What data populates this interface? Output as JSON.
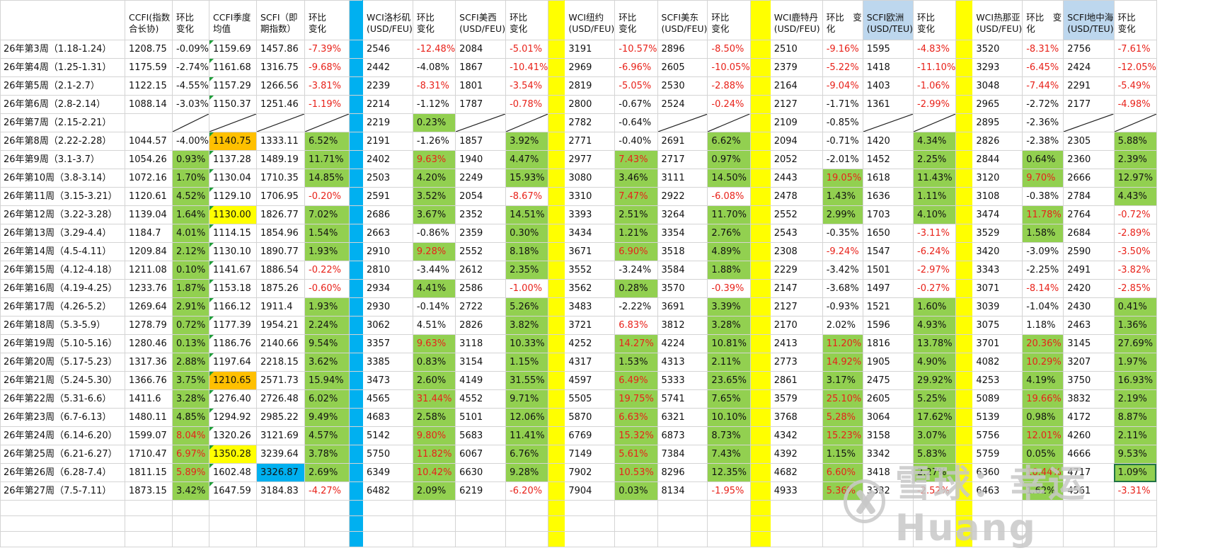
{
  "headers": [
    "",
    "CCFI(指数合长协)",
    "环比\n变化",
    "CCFI季度均值",
    "SCFI（即期指数）",
    "环比　　变化",
    "",
    "WCI洛杉矶(USD/FEU)",
    "环比\n变化",
    "SCFI美西(USD/FEU)",
    "环比\n变化",
    "",
    "WCI纽约(USD/FEU)",
    "环比　　变化",
    "SCFI美东(USD/FEU)",
    "环比\n变化",
    "",
    "WCI鹿特丹(USD/FEU)",
    "环比　变化",
    "SCFI欧洲(USD/TEU)",
    "环比\n变化",
    "",
    "WCI热那亚(USD/FEU)",
    "环比　变化",
    "SCFI地中海(USD/TEU)",
    "环比\n变化"
  ],
  "rows": [
    [
      "26年第3周（1.18-1.24）",
      "1208.75",
      "-0.09%",
      "1159.69",
      "1457.86",
      "-7.39%",
      "",
      "2546",
      "-12.48%",
      "2084",
      "-5.01%",
      "",
      "3191",
      "-10.57%",
      "2896",
      "-8.50%",
      "",
      "2510",
      "-9.16%",
      "1595",
      "-4.83%",
      "",
      "3520",
      "-8.31%",
      "2756",
      "-7.61%"
    ],
    [
      "26年第4周（1.25-1.31）",
      "1175.59",
      "-2.74%",
      "1161.68",
      "1316.75",
      "-9.68%",
      "",
      "2442",
      "-4.08%",
      "1867",
      "-10.41%",
      "",
      "2969",
      "-6.96%",
      "2605",
      "-10.05%",
      "",
      "2379",
      "-5.22%",
      "1418",
      "-11.10%",
      "",
      "3293",
      "-6.45%",
      "2424",
      "-12.05%"
    ],
    [
      "26年第5周（2.1-2.7）",
      "1122.15",
      "-4.55%",
      "1157.29",
      "1266.56",
      "-3.81%",
      "",
      "2239",
      "-8.31%",
      "1801",
      "-3.54%",
      "",
      "2819",
      "-5.05%",
      "2530",
      "-2.88%",
      "",
      "2164",
      "-9.04%",
      "1403",
      "-1.06%",
      "",
      "3048",
      "-7.44%",
      "2291",
      "-5.49%"
    ],
    [
      "26年第6周（2.8-2.14）",
      "1088.14",
      "-3.03%",
      "1150.37",
      "1251.46",
      "-1.19%",
      "",
      "2214",
      "-1.12%",
      "1787",
      "-0.78%",
      "",
      "2800",
      "-0.67%",
      "2524",
      "-0.24%",
      "",
      "2127",
      "-1.71%",
      "1361",
      "-2.99%",
      "",
      "2965",
      "-2.72%",
      "2177",
      "-4.98%"
    ],
    [
      "26年第7周（2.15-2.21）",
      "",
      "/",
      "/",
      "/",
      "/",
      "",
      "2219",
      "0.23%",
      "/",
      "/",
      "",
      "2782",
      "-0.64%",
      "/",
      "/",
      "",
      "2109",
      "-0.85%",
      "/",
      "/",
      "",
      "2895",
      "-2.36%",
      "/",
      "/"
    ],
    [
      "26年第8周（2.22-2.28）",
      "1044.57",
      "-4.00%",
      "1140.75",
      "1333.11",
      "6.52%",
      "",
      "2191",
      "-1.26%",
      "1857",
      "3.92%",
      "",
      "2771",
      "-0.40%",
      "2691",
      "6.62%",
      "",
      "2094",
      "-0.71%",
      "1420",
      "4.34%",
      "",
      "2826",
      "-2.38%",
      "2305",
      "5.88%"
    ],
    [
      "26年第9周（3.1-3.7）",
      "1054.26",
      "0.93%",
      "1137.28",
      "1489.19",
      "11.71%",
      "",
      "2402",
      "9.63%",
      "1940",
      "4.47%",
      "",
      "2977",
      "7.43%",
      "2717",
      "0.97%",
      "",
      "2052",
      "-2.01%",
      "1452",
      "2.25%",
      "",
      "2844",
      "0.64%",
      "2360",
      "2.39%"
    ],
    [
      "26年第10周（3.8-3.14）",
      "1072.16",
      "1.70%",
      "1130.04",
      "1710.35",
      "14.85%",
      "",
      "2503",
      "4.20%",
      "2249",
      "15.93%",
      "",
      "3080",
      "3.46%",
      "3111",
      "14.50%",
      "",
      "2443",
      "19.05%",
      "1618",
      "11.43%",
      "",
      "3120",
      "9.70%",
      "2666",
      "12.97%"
    ],
    [
      "26年第11周（3.15-3.21）",
      "1120.61",
      "4.52%",
      "1129.10",
      "1706.95",
      "-0.20%",
      "",
      "2591",
      "3.52%",
      "2054",
      "-8.67%",
      "",
      "3310",
      "7.47%",
      "2922",
      "-6.08%",
      "",
      "2478",
      "1.43%",
      "1636",
      "1.11%",
      "",
      "3108",
      "-0.38%",
      "2784",
      "4.43%"
    ],
    [
      "26年第12周（3.22-3.28）",
      "1139.04",
      "1.64%",
      "1130.00",
      "1826.77",
      "7.02%",
      "",
      "2686",
      "3.67%",
      "2352",
      "14.51%",
      "",
      "3393",
      "2.51%",
      "3264",
      "11.70%",
      "",
      "2552",
      "2.99%",
      "1703",
      "4.10%",
      "",
      "3474",
      "11.78%",
      "2764",
      "-0.72%"
    ],
    [
      "26年第13周（3.29-4.4）",
      "1184.7",
      "4.01%",
      "1114.15",
      "1854.96",
      "1.54%",
      "",
      "2663",
      "-0.86%",
      "2359",
      "0.30%",
      "",
      "3434",
      "1.21%",
      "3354",
      "2.76%",
      "",
      "2543",
      "-0.35%",
      "1650",
      "-3.11%",
      "",
      "3529",
      "1.58%",
      "2684",
      "-2.89%"
    ],
    [
      "26年第14周（4.5-4.11）",
      "1209.84",
      "2.12%",
      "1130.10",
      "1890.77",
      "1.93%",
      "",
      "2910",
      "9.28%",
      "2552",
      "8.18%",
      "",
      "3671",
      "6.90%",
      "3518",
      "4.89%",
      "",
      "2308",
      "-9.24%",
      "1547",
      "-6.24%",
      "",
      "3420",
      "-3.09%",
      "2590",
      "-3.50%"
    ],
    [
      "26年第15周（4.12-4.18）",
      "1211.08",
      "0.10%",
      "1141.67",
      "1886.54",
      "-0.22%",
      "",
      "2810",
      "-3.44%",
      "2612",
      "2.35%",
      "",
      "3552",
      "-3.24%",
      "3584",
      "1.88%",
      "",
      "2229",
      "-3.42%",
      "1501",
      "-2.97%",
      "",
      "3343",
      "-2.25%",
      "2491",
      "-3.82%"
    ],
    [
      "26年第16周（4.19-4.25）",
      "1233.76",
      "1.87%",
      "1153.18",
      "1875.26",
      "-0.60%",
      "",
      "2934",
      "4.41%",
      "2586",
      "-1.00%",
      "",
      "3562",
      "0.28%",
      "3570",
      "-0.39%",
      "",
      "2147",
      "-3.68%",
      "1497",
      "-0.27%",
      "",
      "3071",
      "-8.14%",
      "2420",
      "-2.85%"
    ],
    [
      "26年第17周（4.26-5.2）",
      "1269.64",
      "2.91%",
      "1166.12",
      "1911.4",
      "1.93%",
      "",
      "2930",
      "-0.14%",
      "2722",
      "5.26%",
      "",
      "3483",
      "-2.22%",
      "3691",
      "3.39%",
      "",
      "2127",
      "-0.93%",
      "1521",
      "1.60%",
      "",
      "3039",
      "-1.04%",
      "2430",
      "0.41%"
    ],
    [
      "26年第18周（5.3-5.9）",
      "1278.79",
      "0.72%",
      "1177.39",
      "1954.21",
      "2.24%",
      "",
      "3062",
      "4.51%",
      "2826",
      "3.82%",
      "",
      "3721",
      "6.83%",
      "3812",
      "3.28%",
      "",
      "2170",
      "2.02%",
      "1596",
      "4.93%",
      "",
      "3075",
      "1.18%",
      "2463",
      "1.36%"
    ],
    [
      "26年第19周（5.10-5.16）",
      "1280.46",
      "0.13%",
      "1186.76",
      "2140.66",
      "9.54%",
      "",
      "3357",
      "9.63%",
      "3118",
      "10.33%",
      "",
      "4252",
      "14.27%",
      "4224",
      "10.81%",
      "",
      "2413",
      "11.20%",
      "1816",
      "13.78%",
      "",
      "3701",
      "20.36%",
      "3145",
      "27.69%"
    ],
    [
      "26年第20周（5.17-5.23）",
      "1317.36",
      "2.88%",
      "1197.64",
      "2218.15",
      "3.62%",
      "",
      "3385",
      "0.83%",
      "3154",
      "1.15%",
      "",
      "4317",
      "1.53%",
      "4313",
      "2.11%",
      "",
      "2773",
      "14.92%",
      "1905",
      "4.90%",
      "",
      "4082",
      "10.29%",
      "3207",
      "1.97%"
    ],
    [
      "26年第21周（5.24-5.30）",
      "1366.76",
      "3.75%",
      "1210.65",
      "2571.73",
      "15.94%",
      "",
      "3473",
      "2.60%",
      "4149",
      "31.55%",
      "",
      "4597",
      "6.49%",
      "5333",
      "23.65%",
      "",
      "2861",
      "3.17%",
      "2475",
      "29.92%",
      "",
      "4253",
      "4.19%",
      "3750",
      "16.93%"
    ],
    [
      "26年第22周（5.31-6.6）",
      "1411.6",
      "3.28%",
      "1276.40",
      "2726.48",
      "6.02%",
      "",
      "4565",
      "31.44%",
      "4552",
      "9.71%",
      "",
      "5505",
      "19.75%",
      "5741",
      "7.65%",
      "",
      "3579",
      "25.10%",
      "2605",
      "5.25%",
      "",
      "5089",
      "19.66%",
      "3832",
      "2.19%"
    ],
    [
      "26年第23周（6.7-6.13）",
      "1480.11",
      "4.85%",
      "1294.92",
      "2985.22",
      "9.49%",
      "",
      "4683",
      "2.58%",
      "5101",
      "12.06%",
      "",
      "5870",
      "6.63%",
      "6321",
      "10.10%",
      "",
      "3768",
      "5.28%",
      "3064",
      "17.62%",
      "",
      "5139",
      "0.98%",
      "4172",
      "8.87%"
    ],
    [
      "26年第24周（6.14-6.20）",
      "1599.07",
      "8.04%",
      "1320.26",
      "3121.69",
      "4.57%",
      "",
      "5142",
      "9.80%",
      "5683",
      "11.41%",
      "",
      "6769",
      "15.32%",
      "6873",
      "8.73%",
      "",
      "4342",
      "15.23%",
      "3158",
      "3.07%",
      "",
      "5756",
      "12.01%",
      "4260",
      "2.11%"
    ],
    [
      "26年第25周（6.21-6.27）",
      "1710.47",
      "6.97%",
      "1350.28",
      "3239.64",
      "3.78%",
      "",
      "5750",
      "11.82%",
      "6067",
      "6.76%",
      "",
      "7149",
      "5.61%",
      "7384",
      "7.43%",
      "",
      "4392",
      "1.15%",
      "3342",
      "5.83%",
      "",
      "5759",
      "0.05%",
      "4666",
      "9.53%"
    ],
    [
      "26年第26周（6.28-7.4）",
      "1811.15",
      "5.89%",
      "1602.48",
      "3326.87",
      "2.69%",
      "",
      "6349",
      "10.42%",
      "6630",
      "9.28%",
      "",
      "7902",
      "10.53%",
      "8296",
      "12.35%",
      "",
      "4682",
      "6.60%",
      "3418",
      "2.27%",
      "",
      "6360",
      "10.44%",
      "4717",
      "1.09%"
    ],
    [
      "26年第27周（7.5-7.11）",
      "1873.15",
      "3.42%",
      "1647.59",
      "3184.83",
      "-4.27%",
      "",
      "6482",
      "2.09%",
      "6219",
      "-6.20%",
      "",
      "7904",
      "0.03%",
      "8134",
      "-1.95%",
      "",
      "4933",
      "5.36%",
      "3332",
      "-2.52%",
      "",
      "6463",
      "1.62%",
      "4561",
      "-3.31%"
    ]
  ],
  "styles": [
    [
      "",
      "",
      "",
      "",
      "",
      "",
      "",
      "",
      "",
      "",
      "",
      "",
      "",
      "",
      "",
      "",
      "",
      "",
      "",
      "",
      "",
      "",
      "",
      "",
      "",
      ""
    ],
    [
      "",
      "",
      "",
      "",
      "",
      "",
      "",
      "",
      "",
      "",
      "",
      "",
      "",
      "",
      "",
      "",
      "",
      "",
      "",
      "",
      "",
      "",
      "",
      "",
      "",
      ""
    ],
    [
      "",
      "",
      "",
      "",
      "",
      "",
      "",
      "",
      "",
      "",
      "",
      "",
      "",
      "",
      "",
      "",
      "",
      "",
      "",
      "",
      "",
      "",
      "",
      "",
      "",
      ""
    ],
    [
      "",
      "",
      "",
      "",
      "",
      "",
      "",
      "",
      "",
      "",
      "",
      "",
      "",
      "",
      "",
      "",
      "",
      "",
      "",
      "",
      "",
      "",
      "",
      "",
      "",
      ""
    ],
    [
      "",
      "",
      "",
      "",
      "",
      "",
      "",
      "",
      "g",
      "",
      "",
      "",
      "",
      "",
      "",
      "",
      "",
      "",
      "",
      "",
      "",
      "",
      "",
      "",
      "",
      ""
    ],
    [
      "",
      "",
      "",
      "o",
      "",
      "g",
      "",
      "",
      "",
      "",
      "g",
      "",
      "",
      "",
      "",
      "g",
      "",
      "",
      "",
      "",
      "g",
      "",
      "",
      "",
      "",
      "g"
    ],
    [
      "",
      "",
      "g",
      "",
      "",
      "g",
      "",
      "",
      "g",
      "",
      "g",
      "",
      "",
      "g",
      "",
      "g",
      "",
      "",
      "",
      "",
      "g",
      "",
      "",
      "g",
      "",
      "g"
    ],
    [
      "",
      "",
      "g",
      "",
      "",
      "g",
      "",
      "",
      "g",
      "",
      "g",
      "",
      "",
      "g",
      "",
      "g",
      "",
      "",
      "g",
      "",
      "g",
      "",
      "",
      "g",
      "",
      "g"
    ],
    [
      "",
      "",
      "g",
      "",
      "",
      "",
      "",
      "",
      "g",
      "",
      "",
      "",
      "",
      "g",
      "",
      "",
      "",
      "",
      "g",
      "",
      "g",
      "",
      "",
      "",
      "",
      "g"
    ],
    [
      "",
      "",
      "g",
      "y",
      "",
      "g",
      "",
      "",
      "g",
      "",
      "g",
      "",
      "",
      "g",
      "",
      "g",
      "",
      "",
      "g",
      "",
      "g",
      "",
      "",
      "g",
      "",
      ""
    ],
    [
      "",
      "",
      "g",
      "",
      "",
      "g",
      "",
      "",
      "",
      "",
      "g",
      "",
      "",
      "g",
      "",
      "g",
      "",
      "",
      "",
      "",
      "",
      "",
      "",
      "g",
      "",
      ""
    ],
    [
      "",
      "",
      "g",
      "",
      "",
      "g",
      "",
      "",
      "g",
      "",
      "g",
      "",
      "",
      "g",
      "",
      "g",
      "",
      "",
      "",
      "",
      "",
      "",
      "",
      "",
      "",
      ""
    ],
    [
      "",
      "",
      "g",
      "",
      "",
      "",
      "",
      "",
      "",
      "",
      "g",
      "",
      "",
      "",
      "",
      "g",
      "",
      "",
      "",
      "",
      "",
      "",
      "",
      "",
      "",
      ""
    ],
    [
      "",
      "",
      "g",
      "",
      "",
      "",
      "",
      "",
      "g",
      "",
      "",
      "",
      "",
      "g",
      "",
      "",
      "",
      "",
      "",
      "",
      "",
      "",
      "",
      "",
      "",
      ""
    ],
    [
      "",
      "",
      "g",
      "",
      "",
      "g",
      "",
      "",
      "",
      "",
      "g",
      "",
      "",
      "",
      "",
      "g",
      "",
      "",
      "",
      "",
      "g",
      "",
      "",
      "",
      "",
      "g"
    ],
    [
      "",
      "",
      "g",
      "",
      "",
      "g",
      "",
      "",
      "",
      "",
      "g",
      "",
      "",
      "",
      "",
      "g",
      "",
      "",
      "",
      "",
      "g",
      "",
      "",
      "",
      "",
      "g"
    ],
    [
      "",
      "",
      "g",
      "",
      "",
      "g",
      "",
      "",
      "g",
      "",
      "g",
      "",
      "",
      "g",
      "",
      "g",
      "",
      "",
      "g",
      "",
      "g",
      "",
      "",
      "g",
      "",
      "g"
    ],
    [
      "",
      "",
      "g",
      "",
      "",
      "g",
      "",
      "",
      "g",
      "",
      "g",
      "",
      "",
      "g",
      "",
      "g",
      "",
      "",
      "g",
      "",
      "g",
      "",
      "",
      "g",
      "",
      "g"
    ],
    [
      "",
      "",
      "g",
      "o",
      "",
      "g",
      "",
      "",
      "g",
      "",
      "g",
      "",
      "",
      "g",
      "",
      "g",
      "",
      "",
      "g",
      "",
      "g",
      "",
      "",
      "g",
      "",
      "g"
    ],
    [
      "",
      "",
      "g",
      "",
      "",
      "g",
      "",
      "",
      "g",
      "",
      "g",
      "",
      "",
      "g",
      "",
      "g",
      "",
      "",
      "g",
      "",
      "g",
      "",
      "",
      "g",
      "",
      "g"
    ],
    [
      "",
      "",
      "g",
      "",
      "",
      "g",
      "",
      "",
      "g",
      "",
      "g",
      "",
      "",
      "g",
      "",
      "g",
      "",
      "",
      "g",
      "",
      "g",
      "",
      "",
      "g",
      "",
      "g"
    ],
    [
      "",
      "",
      "g",
      "",
      "",
      "g",
      "",
      "",
      "g",
      "",
      "g",
      "",
      "",
      "g",
      "",
      "g",
      "",
      "",
      "g",
      "",
      "g",
      "",
      "",
      "g",
      "",
      "g"
    ],
    [
      "",
      "",
      "g",
      "y",
      "",
      "g",
      "",
      "",
      "g",
      "",
      "g",
      "",
      "",
      "g",
      "",
      "g",
      "",
      "",
      "g",
      "",
      "g",
      "",
      "",
      "g",
      "",
      "g"
    ],
    [
      "",
      "",
      "g",
      "",
      "b",
      "g",
      "",
      "",
      "g",
      "",
      "g",
      "",
      "",
      "g",
      "",
      "g",
      "",
      "",
      "g",
      "",
      "g",
      "",
      "",
      "g",
      "",
      "g"
    ],
    [
      "",
      "",
      "g",
      "",
      "",
      "",
      "",
      "",
      "g",
      "",
      "",
      "",
      "",
      "g",
      "",
      "",
      "",
      "",
      "g",
      "",
      "",
      "",
      "",
      "g",
      "",
      ""
    ]
  ],
  "watermark": "雪球：幸运Huang",
  "colors": {
    "green": "#92d050",
    "orange": "#ffc000",
    "yellow": "#ffff00",
    "blue": "#00b0f0",
    "light_blue": "#bdd7ee",
    "negative_red": "#e8221a"
  }
}
